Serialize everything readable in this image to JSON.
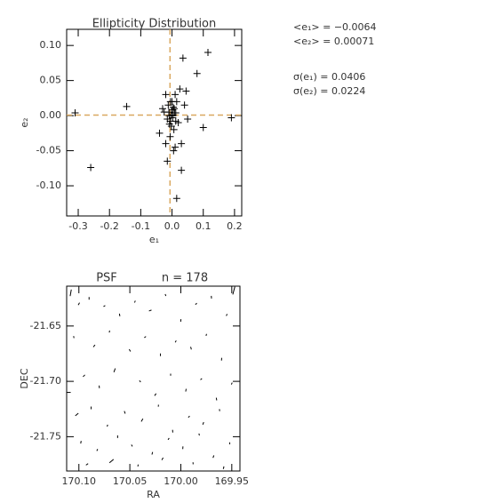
{
  "chart_data": [
    {
      "type": "scatter",
      "title": "Ellipticity Distribution",
      "x_label": "e₁",
      "y_label": "e₂",
      "xlim": [
        -0.337,
        0.223
      ],
      "ylim": [
        -0.143,
        0.123
      ],
      "xticks": [
        -0.3,
        -0.2,
        -0.1,
        {
          "value": 0,
          "label": "0.0"
        },
        0.1,
        0.2
      ],
      "yticks": [
        {
          "value": 0.1,
          "label": "0.10"
        },
        {
          "value": 0.05,
          "label": "0.05"
        },
        {
          "value": 0,
          "label": "0.00"
        },
        {
          "value": -0.05,
          "label": "-0.05"
        },
        {
          "value": -0.1,
          "label": "-0.10"
        }
      ],
      "color": "#000000",
      "ref_color": "#d9a860",
      "x": [
        -0.31,
        -0.26,
        -0.145,
        -0.04,
        -0.03,
        -0.02,
        -0.015,
        -0.01,
        -0.008,
        -0.005,
        -0.003,
        0,
        0.002,
        0.004,
        0.006,
        0.008,
        0.01,
        0.012,
        -0.012,
        -0.006,
        0.015,
        0.02,
        0.025,
        0.03,
        0.035,
        0.04,
        0.05,
        -0.02,
        -0.015,
        0.005,
        0.01,
        0.015,
        0.03,
        0.045,
        0.08,
        0.1,
        0.115,
        0.19,
        -0.025,
        0,
        -0.005,
        0.003,
        0.007,
        -0.009,
        0.012,
        -0.002
      ],
      "y": [
        0.004,
        -0.074,
        0.013,
        -0.025,
        0.01,
        0.03,
        -0.005,
        0.005,
        -0.012,
        0.02,
        0,
        0.008,
        -0.003,
        0.012,
        -0.02,
        0.004,
        0.03,
        -0.008,
        0.015,
        -0.03,
        0.02,
        -0.01,
        0.038,
        -0.04,
        0.082,
        0.015,
        -0.005,
        -0.04,
        -0.065,
        -0.05,
        -0.045,
        -0.118,
        -0.078,
        0.035,
        0.06,
        -0.017,
        0.09,
        -0.003,
        0.005,
        0.02,
        -0.008,
        0.001,
        0.01,
        0,
        0.004,
        -0.015
      ],
      "stats": [
        {
          "text": "<e₁> = −0.0064",
          "value": -0.0064
        },
        {
          "text": "<e₂> = 0.00071",
          "value": 0.00071
        },
        {
          "text": "σ(e₁) = 0.0406",
          "value": 0.0406
        },
        {
          "text": "σ(e₂) = 0.0224",
          "value": 0.0224
        }
      ]
    },
    {
      "type": "whisker",
      "title": "PSF",
      "subtitle": "n = 178",
      "x_label": "RA",
      "y_label": "DEC",
      "xlim": [
        170.112,
        169.942
      ],
      "ylim": [
        -21.781,
        -21.614
      ],
      "xticks": [
        {
          "value": 170.1,
          "label": "170.10"
        },
        170.05,
        {
          "value": 170,
          "label": "170.00"
        },
        169.95
      ],
      "yticks": [
        -21.65,
        {
          "value": -21.7,
          "label": "-21.70"
        },
        -21.75
      ],
      "color": "#000000",
      "x": [
        170.108,
        170.1,
        170.09,
        170.075,
        170.06,
        170.045,
        170.03,
        170.015,
        170.0,
        169.985,
        169.97,
        169.955,
        169.948,
        170.105,
        170.085,
        170.07,
        170.05,
        170.035,
        170.02,
        170.005,
        169.99,
        169.975,
        169.96,
        170.095,
        170.08,
        170.065,
        170.04,
        170.025,
        170.01,
        169.995,
        169.98,
        169.965,
        169.95,
        170.102,
        170.088,
        170.072,
        170.055,
        170.038,
        170.022,
        170.008,
        169.992,
        169.978,
        169.962,
        170.098,
        170.082,
        170.062,
        170.048,
        170.028,
        170.012,
        169.998,
        169.982,
        169.968,
        169.952,
        170.092,
        170.068,
        170.042,
        170.018,
        169.988,
        169.958,
        170.11
      ],
      "y": [
        -21.62,
        -21.63,
        -21.625,
        -21.632,
        -21.64,
        -21.628,
        -21.636,
        -21.622,
        -21.645,
        -21.63,
        -21.624,
        -21.64,
        -21.618,
        -21.66,
        -21.668,
        -21.655,
        -21.672,
        -21.66,
        -21.676,
        -21.664,
        -21.67,
        -21.658,
        -21.68,
        -21.695,
        -21.705,
        -21.69,
        -21.7,
        -21.712,
        -21.694,
        -21.708,
        -21.698,
        -21.716,
        -21.702,
        -21.73,
        -21.724,
        -21.74,
        -21.728,
        -21.735,
        -21.722,
        -21.745,
        -21.732,
        -21.738,
        -21.726,
        -21.755,
        -21.762,
        -21.75,
        -21.758,
        -21.765,
        -21.752,
        -21.76,
        -21.748,
        -21.768,
        -21.756,
        -21.775,
        -21.772,
        -21.776,
        -21.77,
        -21.774,
        -21.778,
        -21.71
      ],
      "e": [
        0.05,
        0.02,
        0.02,
        0.015,
        0.02,
        0.015,
        0.02,
        0.015,
        0.02,
        0.015,
        0.02,
        0.015,
        0.06,
        0.015,
        0.02,
        0.015,
        0.02,
        0.015,
        0.02,
        0.015,
        0.02,
        0.015,
        0.02,
        0.02,
        0.02,
        0.03,
        0.015,
        0.02,
        0.015,
        0.02,
        0.015,
        0.02,
        0.015,
        0.03,
        0.02,
        0.015,
        0.02,
        0.025,
        0.015,
        0.02,
        0.015,
        0.02,
        0.015,
        0.02,
        0.015,
        0.02,
        0.015,
        0.02,
        0.015,
        0.02,
        0.015,
        0.02,
        0.015,
        0.02,
        0.04,
        0.015,
        0.02,
        0.015,
        0.02,
        0.03
      ],
      "angle": [
        80,
        60,
        90,
        30,
        100,
        70,
        20,
        110,
        85,
        45,
        95,
        65,
        75,
        100,
        50,
        80,
        120,
        35,
        90,
        60,
        105,
        75,
        85,
        45,
        95,
        70,
        130,
        55,
        90,
        80,
        40,
        100,
        65,
        40,
        90,
        75,
        110,
        60,
        85,
        95,
        50,
        70,
        100,
        80,
        65,
        90,
        120,
        75,
        55,
        85,
        105,
        70,
        90,
        35,
        40,
        80,
        60,
        95,
        75,
        0
      ]
    }
  ]
}
